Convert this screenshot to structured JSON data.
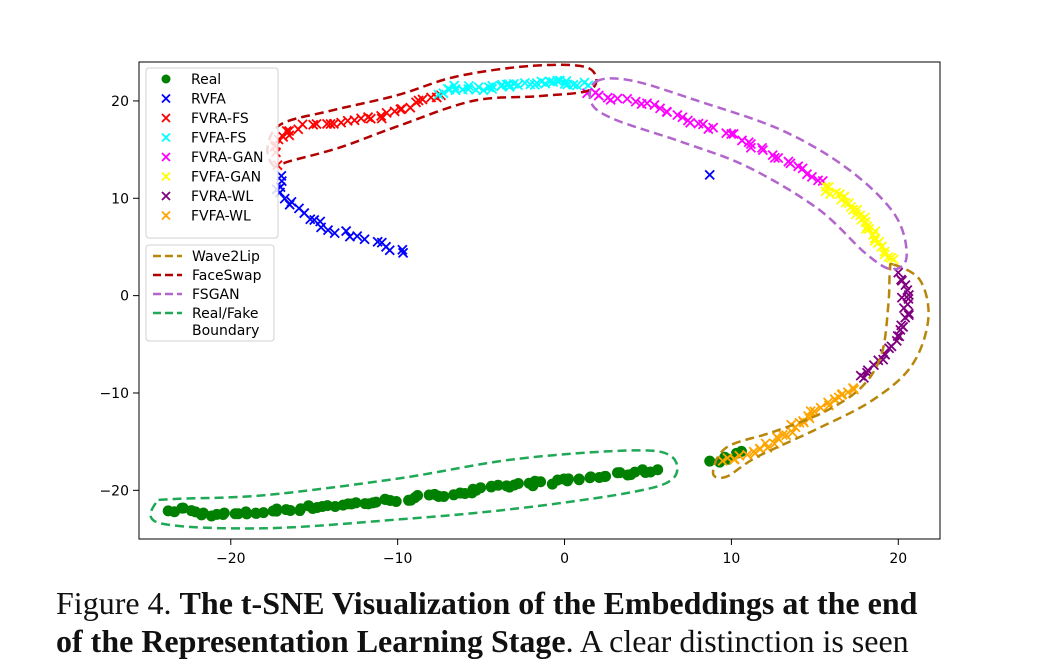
{
  "caption": {
    "label": "Figure 4.",
    "title_line1": "The t-SNE Visualization of the Embeddings at the end",
    "title_line2": "of the Representation Learning Stage",
    "text": ". A clear distinction is seen"
  },
  "chart_data": {
    "type": "scatter",
    "title": "",
    "xlabel": "",
    "ylabel": "",
    "xlim": [
      -25.5,
      22.5
    ],
    "ylim": [
      -25,
      24
    ],
    "xticks": [
      -20,
      -10,
      0,
      10,
      20
    ],
    "yticks": [
      20,
      10,
      0,
      -10,
      -20
    ],
    "xtick_labels": [
      "−20",
      "−10",
      "0",
      "10",
      "20"
    ],
    "ytick_labels": [
      "20",
      "10",
      "0",
      "−10",
      "−20"
    ],
    "grid": false,
    "legend_placement": "top-left",
    "series": [
      {
        "name": "Real",
        "marker": "circle",
        "color": "#008000",
        "path": [
          [
            -23.5,
            -22.3
          ],
          [
            -23,
            -21.8
          ],
          [
            -22,
            -22.4
          ],
          [
            -20,
            -22.5
          ],
          [
            -18,
            -22.2
          ],
          [
            -15,
            -21.7
          ],
          [
            -12,
            -21.3
          ],
          [
            -9,
            -20.8
          ],
          [
            -6,
            -20.2
          ],
          [
            -3,
            -19.5
          ],
          [
            0,
            -19
          ],
          [
            3,
            -18.4
          ],
          [
            5.5,
            -17.9
          ]
        ],
        "extra": [
          [
            8.7,
            -17
          ],
          [
            9.3,
            -17.1
          ],
          [
            9.8,
            -16.8
          ],
          [
            10.3,
            -16.2
          ],
          [
            10.6,
            -16
          ],
          [
            9.6,
            -16.6
          ]
        ],
        "n": 92
      },
      {
        "name": "RVFA",
        "marker": "x",
        "color": "#0000ff",
        "path": [
          [
            -17,
            12.3
          ],
          [
            -17.2,
            11
          ],
          [
            -16.5,
            9.8
          ],
          [
            -16,
            8.6
          ],
          [
            -15,
            7.6
          ],
          [
            -13.5,
            6.6
          ],
          [
            -12,
            5.9
          ],
          [
            -11,
            5.3
          ],
          [
            -10,
            4.6
          ],
          [
            -9.5,
            4.2
          ]
        ],
        "extra": [
          [
            8.7,
            12.4
          ]
        ],
        "n": 26
      },
      {
        "name": "FVRA-FS",
        "marker": "x",
        "color": "#ff0000",
        "path": [
          [
            -17.3,
            14.9
          ],
          [
            -17.1,
            15.8
          ],
          [
            -16.6,
            17
          ],
          [
            -15.6,
            17.4
          ],
          [
            -14.5,
            17.5
          ],
          [
            -12.5,
            18
          ],
          [
            -11,
            18.3
          ],
          [
            -9.5,
            19.4
          ],
          [
            -8.5,
            20.2
          ],
          [
            -7.5,
            20.6
          ]
        ],
        "extra": [
          [
            -17.2,
            13.4
          ]
        ],
        "n": 34
      },
      {
        "name": "FVFA-FS",
        "marker": "x",
        "color": "#00ffff",
        "path": [
          [
            -7.5,
            20.8
          ],
          [
            -6.5,
            21.4
          ],
          [
            -5,
            21.3
          ],
          [
            -3,
            21.7
          ],
          [
            -1,
            22
          ],
          [
            0.5,
            21.8
          ],
          [
            1.2,
            21.7
          ]
        ],
        "extra": [],
        "n": 40
      },
      {
        "name": "FVRA-GAN",
        "marker": "x",
        "color": "#ff00ff",
        "path": [
          [
            1.5,
            21
          ],
          [
            2.7,
            20.4
          ],
          [
            4,
            20
          ],
          [
            6,
            19
          ],
          [
            8,
            17.8
          ],
          [
            10,
            16.6
          ],
          [
            12,
            14.8
          ],
          [
            14,
            13
          ],
          [
            15.3,
            11.7
          ]
        ],
        "extra": [],
        "n": 42
      },
      {
        "name": "FVFA-GAN",
        "marker": "x",
        "color": "#ffff00",
        "path": [
          [
            15.5,
            11.2
          ],
          [
            16.5,
            10.2
          ],
          [
            17.5,
            8.6
          ],
          [
            18.5,
            6.4
          ],
          [
            19.3,
            4.6
          ],
          [
            19.6,
            3.6
          ]
        ],
        "extra": [],
        "n": 34
      },
      {
        "name": "FVRA-WL",
        "marker": "x",
        "color": "#800080",
        "path": [
          [
            20,
            2.2
          ],
          [
            20.4,
            0.2
          ],
          [
            20.5,
            -2
          ],
          [
            19.8,
            -4.6
          ],
          [
            18.8,
            -6.6
          ],
          [
            17.8,
            -8.6
          ]
        ],
        "extra": [],
        "n": 30
      },
      {
        "name": "FVFA-WL",
        "marker": "x",
        "color": "#ffa500",
        "path": [
          [
            17.5,
            -9.4
          ],
          [
            16.5,
            -10.4
          ],
          [
            15,
            -12
          ],
          [
            13.5,
            -13.8
          ],
          [
            12,
            -15.5
          ],
          [
            10.7,
            -16.6
          ],
          [
            9.5,
            -17
          ]
        ],
        "extra": [],
        "n": 38
      }
    ],
    "boundaries": [
      {
        "name": "Wave2Lip",
        "color": "#b8860b",
        "points": [
          [
            19.7,
            3.2
          ],
          [
            21.3,
            1.6
          ],
          [
            21.8,
            -2.4
          ],
          [
            20.8,
            -7.2
          ],
          [
            18.4,
            -10.8
          ],
          [
            15,
            -13.8
          ],
          [
            11.5,
            -16.6
          ],
          [
            9.7,
            -18.6
          ],
          [
            8.9,
            -18.2
          ],
          [
            9.7,
            -15.6
          ],
          [
            12.5,
            -14
          ],
          [
            15.5,
            -12
          ],
          [
            17.8,
            -9.4
          ],
          [
            19,
            -6
          ],
          [
            19.4,
            -1
          ],
          [
            19.5,
            2.5
          ]
        ]
      },
      {
        "name": "FaceSwap",
        "color": "#b20000",
        "points": [
          [
            -17.4,
            13.3
          ],
          [
            -17.8,
            15.2
          ],
          [
            -17,
            17.6
          ],
          [
            -14,
            19
          ],
          [
            -10,
            20.6
          ],
          [
            -6.5,
            22.5
          ],
          [
            -2,
            23.6
          ],
          [
            1.4,
            23.4
          ],
          [
            1.6,
            21.2
          ],
          [
            -1.5,
            20.5
          ],
          [
            -5.5,
            20
          ],
          [
            -10,
            17.4
          ],
          [
            -13.5,
            15.2
          ],
          [
            -16.5,
            13.8
          ]
        ]
      },
      {
        "name": "FSGAN",
        "color": "#b266cc",
        "points": [
          [
            1.9,
            22
          ],
          [
            4,
            22.1
          ],
          [
            8,
            20
          ],
          [
            13,
            17
          ],
          [
            17,
            13
          ],
          [
            19.8,
            8.3
          ],
          [
            20.5,
            4
          ],
          [
            19.6,
            2.7
          ],
          [
            18,
            4.4
          ],
          [
            15.2,
            8.9
          ],
          [
            11,
            13.2
          ],
          [
            7,
            15.8
          ],
          [
            3,
            18.1
          ],
          [
            1.6,
            19.8
          ]
        ]
      },
      {
        "name": "Real/Fake\nBoundary",
        "color": "#1fa855",
        "points": [
          [
            -24.5,
            -21.3
          ],
          [
            -24.2,
            -23.4
          ],
          [
            -18,
            -23.9
          ],
          [
            -10,
            -23
          ],
          [
            -3,
            -21.9
          ],
          [
            4,
            -20.2
          ],
          [
            6.5,
            -18.8
          ],
          [
            6.4,
            -16.5
          ],
          [
            4,
            -15.9
          ],
          [
            -3,
            -16.8
          ],
          [
            -10,
            -18.8
          ],
          [
            -18,
            -20.5
          ],
          [
            -23.5,
            -20.9
          ]
        ]
      }
    ]
  }
}
